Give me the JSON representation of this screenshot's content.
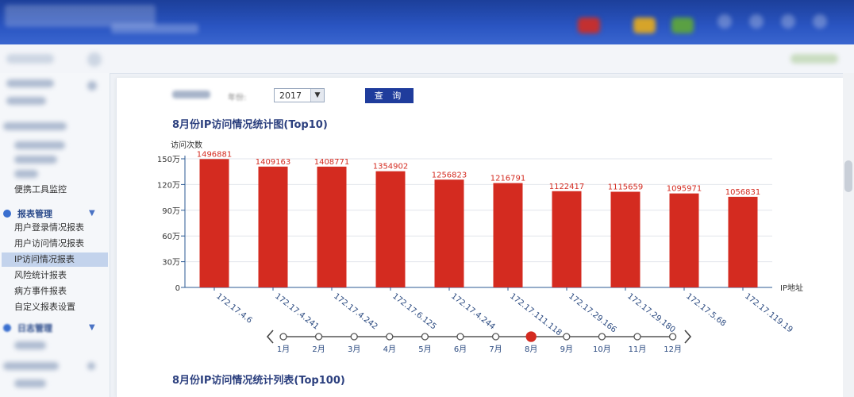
{
  "toolbar": {
    "year_label": "年份:",
    "year_value": "2017",
    "query_label": "查 询"
  },
  "sidebar": {
    "report_group_label": "报表管理",
    "log_group_label": "日志管理",
    "tool_monitor_label": "便携工具监控",
    "report_items": [
      "用户登录情况报表",
      "用户访问情况报表",
      "IP访问情况报表",
      "风险统计报表",
      "病方事件报表",
      "自定义报表设置"
    ],
    "active_index": 2
  },
  "chart_title": "8月份IP访问情况统计图(Top10)",
  "list_title": "8月份IP访问情况统计列表(Top100)",
  "months": [
    "1月",
    "2月",
    "3月",
    "4月",
    "5月",
    "6月",
    "7月",
    "8月",
    "9月",
    "10月",
    "11月",
    "12月"
  ],
  "selected_month": "8月",
  "colors": {
    "bar": "#d42b20",
    "accent": "#1f3c9c",
    "axis": "#2b5a93",
    "selected_dot": "#d42b20"
  },
  "chart_data": {
    "type": "bar",
    "ylabel": "访问次数",
    "xlabel": "IP地址",
    "ylim": [
      0,
      1500000
    ],
    "yticks": [
      0,
      300000,
      600000,
      900000,
      1200000,
      1500000
    ],
    "ytick_labels": [
      "0",
      "30万",
      "60万",
      "90万",
      "120万",
      "150万"
    ],
    "categories": [
      "172.17.4.6",
      "172.17.4.241",
      "172.17.4.242",
      "172.17.6.125",
      "172.17.4.244",
      "172.17.111.118",
      "172.17.29.166",
      "172.17.29.180",
      "172.17.5.68",
      "172.17.119.19"
    ],
    "values": [
      1496881,
      1409163,
      1408771,
      1354902,
      1256823,
      1216791,
      1122417,
      1115659,
      1095971,
      1056831
    ],
    "grid": true
  }
}
